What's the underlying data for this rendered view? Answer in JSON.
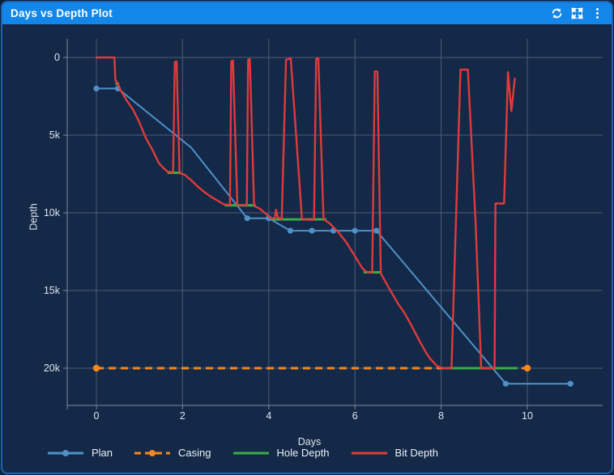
{
  "window": {
    "title": "Days vs Depth Plot"
  },
  "axes": {
    "x": {
      "title": "Days",
      "ticks": [
        {
          "v": 0,
          "label": "0"
        },
        {
          "v": 2,
          "label": "2"
        },
        {
          "v": 4,
          "label": "4"
        },
        {
          "v": 6,
          "label": "6"
        },
        {
          "v": 8,
          "label": "8"
        },
        {
          "v": 10,
          "label": "10"
        }
      ]
    },
    "y": {
      "title": "Depth",
      "ticks": [
        {
          "v": 0,
          "label": "0"
        },
        {
          "v": 5000,
          "label": "5k"
        },
        {
          "v": 10000,
          "label": "10k"
        },
        {
          "v": 15000,
          "label": "15k"
        },
        {
          "v": 20000,
          "label": "20k"
        }
      ]
    }
  },
  "legend": [
    {
      "label": "Plan",
      "series": "plan",
      "marker": true,
      "dashed": false
    },
    {
      "label": "Casing",
      "series": "casing",
      "marker": true,
      "dashed": true
    },
    {
      "label": "Hole Depth",
      "series": "hole",
      "marker": false,
      "dashed": false
    },
    {
      "label": "Bit Depth",
      "series": "bit",
      "marker": false,
      "dashed": false
    }
  ],
  "colors": {
    "titlebar": "#1286e9",
    "panel_bg": "#142847",
    "outer_bg": "#0d2140",
    "border": "#1f63b0",
    "grid": "#4e5d77",
    "axis": "#7e8b9d",
    "tick_text": "#dde6f0",
    "plan": "#4e91c9",
    "casing": "#f5871d",
    "hole": "#3aad46",
    "bit": "#df3b3b"
  },
  "chart_data": {
    "type": "line",
    "title": "Days vs Depth Plot",
    "xlabel": "Days",
    "ylabel": "Depth",
    "xlim": [
      -0.7,
      11.75
    ],
    "ylim": [
      22400,
      -1200
    ],
    "y_inverted": true,
    "grid": true,
    "legend_position": "bottom-left",
    "series": [
      {
        "name": "Plan",
        "points_with_marker_flag": [
          [
            0,
            2000,
            1
          ],
          [
            0.5,
            2000,
            1
          ],
          [
            2.2,
            5800,
            0
          ],
          [
            3.5,
            10350,
            1
          ],
          [
            4.0,
            10350,
            1
          ],
          [
            4.5,
            11150,
            1
          ],
          [
            5.0,
            11150,
            1
          ],
          [
            5.5,
            11150,
            1
          ],
          [
            6.0,
            11150,
            1
          ],
          [
            6.5,
            11150,
            1
          ],
          [
            9.5,
            21000,
            1
          ],
          [
            11.0,
            21000,
            1
          ]
        ]
      },
      {
        "name": "Casing",
        "points": [
          [
            0,
            20000
          ],
          [
            10,
            20000
          ]
        ],
        "style": "dashed",
        "markers": "both-ends"
      },
      {
        "name": "Hole Depth",
        "visible_segments": [
          [
            [
              0.44,
              1700
            ],
            [
              0.53,
              1700
            ]
          ],
          [
            [
              1.65,
              7420
            ],
            [
              1.97,
              7420
            ]
          ],
          [
            [
              2.98,
              9520
            ],
            [
              3.7,
              9520
            ]
          ],
          [
            [
              4.08,
              10420
            ],
            [
              5.34,
              10420
            ]
          ],
          [
            [
              6.2,
              13830
            ],
            [
              6.62,
              13830
            ]
          ],
          [
            [
              8.12,
              20000
            ],
            [
              9.77,
              20000
            ]
          ]
        ]
      },
      {
        "name": "Bit Depth",
        "points": [
          [
            0,
            0
          ],
          [
            0.42,
            0
          ],
          [
            0.44,
            1450
          ],
          [
            0.5,
            1700
          ],
          [
            0.55,
            2050
          ],
          [
            0.7,
            2750
          ],
          [
            0.85,
            3350
          ],
          [
            1.0,
            4200
          ],
          [
            1.15,
            5200
          ],
          [
            1.3,
            5950
          ],
          [
            1.45,
            6800
          ],
          [
            1.55,
            7100
          ],
          [
            1.65,
            7350
          ],
          [
            1.78,
            7400
          ],
          [
            1.82,
            300
          ],
          [
            1.86,
            250
          ],
          [
            1.93,
            7450
          ],
          [
            2.05,
            7550
          ],
          [
            2.2,
            7900
          ],
          [
            2.35,
            8300
          ],
          [
            2.5,
            8650
          ],
          [
            2.65,
            8950
          ],
          [
            2.8,
            9200
          ],
          [
            2.95,
            9450
          ],
          [
            3.1,
            9500
          ],
          [
            3.13,
            250
          ],
          [
            3.17,
            200
          ],
          [
            3.27,
            9500
          ],
          [
            3.49,
            9500
          ],
          [
            3.52,
            150
          ],
          [
            3.56,
            100
          ],
          [
            3.66,
            9550
          ],
          [
            3.8,
            9750
          ],
          [
            3.95,
            10100
          ],
          [
            4.05,
            10350
          ],
          [
            4.14,
            10350
          ],
          [
            4.17,
            9800
          ],
          [
            4.21,
            10300
          ],
          [
            4.3,
            10400
          ],
          [
            4.4,
            150
          ],
          [
            4.51,
            50
          ],
          [
            4.63,
            4800
          ],
          [
            4.77,
            10420
          ],
          [
            4.95,
            10450
          ],
          [
            5.05,
            10450
          ],
          [
            5.1,
            100
          ],
          [
            5.15,
            50
          ],
          [
            5.27,
            10400
          ],
          [
            5.4,
            10650
          ],
          [
            5.6,
            11200
          ],
          [
            5.8,
            11900
          ],
          [
            6.0,
            12800
          ],
          [
            6.18,
            13600
          ],
          [
            6.28,
            13830
          ],
          [
            6.4,
            13830
          ],
          [
            6.46,
            900
          ],
          [
            6.52,
            900
          ],
          [
            6.6,
            13900
          ],
          [
            6.65,
            14150
          ],
          [
            6.8,
            14900
          ],
          [
            7.0,
            15850
          ],
          [
            7.15,
            16450
          ],
          [
            7.3,
            17200
          ],
          [
            7.5,
            18250
          ],
          [
            7.65,
            19000
          ],
          [
            7.75,
            19400
          ],
          [
            7.9,
            19850
          ],
          [
            8.02,
            20000
          ],
          [
            8.24,
            20000
          ],
          [
            8.45,
            780
          ],
          [
            8.62,
            780
          ],
          [
            8.8,
            10700
          ],
          [
            8.93,
            20000
          ],
          [
            9.24,
            20000
          ],
          [
            9.26,
            9400
          ],
          [
            9.46,
            9400
          ],
          [
            9.55,
            950
          ],
          [
            9.63,
            3450
          ],
          [
            9.71,
            1350
          ]
        ]
      }
    ]
  }
}
